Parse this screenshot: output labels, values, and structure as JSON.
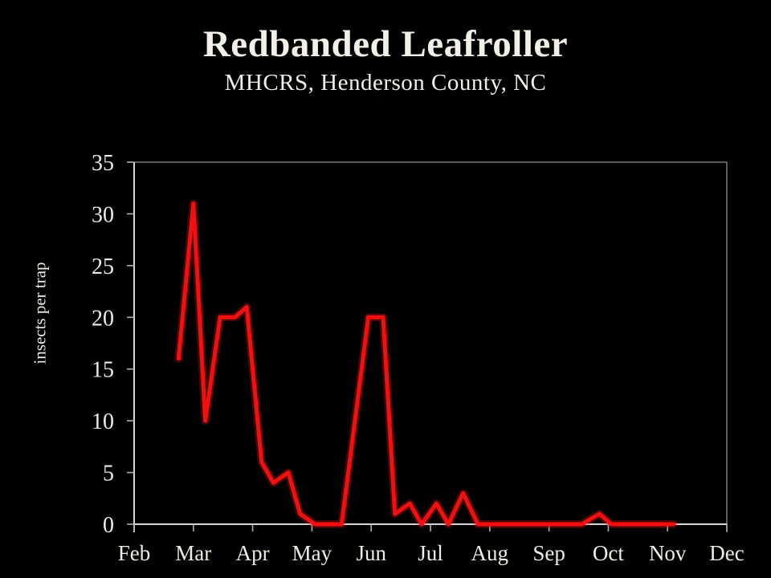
{
  "title": "Redbanded Leafroller",
  "subtitle": "MHCRS, Henderson County, NC",
  "colors": {
    "background": "#000000",
    "text": "#f2efe6",
    "axis": "#d6d6d6",
    "frame": "#8f8f8f",
    "tick": "#b0b0b0",
    "line": "#f01010"
  },
  "chart_data": {
    "type": "line",
    "title": "Redbanded Leafroller",
    "subtitle": "MHCRS, Henderson County, NC",
    "xlabel": "",
    "ylabel": "insects per trap",
    "ylim": [
      0,
      35
    ],
    "y_ticks": [
      0,
      5,
      10,
      15,
      20,
      25,
      30,
      35
    ],
    "x_tick_labels": [
      "Feb",
      "Mar",
      "Apr",
      "May",
      "Jun",
      "Jul",
      "Aug",
      "Sep",
      "Oct",
      "Nov",
      "Dec"
    ],
    "x_unit": "months (0 = Feb tick, 10 = Dec tick)",
    "grid": false,
    "legend": "none",
    "series": [
      {
        "name": "insects per trap",
        "color": "#f01010",
        "points": [
          {
            "x": 0.75,
            "y": 16
          },
          {
            "x": 1.0,
            "y": 31
          },
          {
            "x": 1.2,
            "y": 10
          },
          {
            "x": 1.45,
            "y": 20
          },
          {
            "x": 1.7,
            "y": 20
          },
          {
            "x": 1.9,
            "y": 21
          },
          {
            "x": 2.15,
            "y": 6
          },
          {
            "x": 2.35,
            "y": 4
          },
          {
            "x": 2.6,
            "y": 5
          },
          {
            "x": 2.8,
            "y": 1
          },
          {
            "x": 3.05,
            "y": 0
          },
          {
            "x": 3.3,
            "y": 0
          },
          {
            "x": 3.5,
            "y": 0
          },
          {
            "x": 3.95,
            "y": 20
          },
          {
            "x": 4.2,
            "y": 20
          },
          {
            "x": 4.4,
            "y": 1
          },
          {
            "x": 4.65,
            "y": 2
          },
          {
            "x": 4.85,
            "y": 0
          },
          {
            "x": 5.1,
            "y": 2
          },
          {
            "x": 5.3,
            "y": 0
          },
          {
            "x": 5.55,
            "y": 3
          },
          {
            "x": 5.8,
            "y": 0
          },
          {
            "x": 6.05,
            "y": 0
          },
          {
            "x": 6.3,
            "y": 0
          },
          {
            "x": 6.55,
            "y": 0
          },
          {
            "x": 6.8,
            "y": 0
          },
          {
            "x": 7.05,
            "y": 0
          },
          {
            "x": 7.3,
            "y": 0
          },
          {
            "x": 7.55,
            "y": 0
          },
          {
            "x": 7.85,
            "y": 1
          },
          {
            "x": 8.05,
            "y": 0
          },
          {
            "x": 8.3,
            "y": 0
          },
          {
            "x": 8.55,
            "y": 0
          },
          {
            "x": 8.8,
            "y": 0
          },
          {
            "x": 9.1,
            "y": 0
          }
        ]
      }
    ]
  }
}
